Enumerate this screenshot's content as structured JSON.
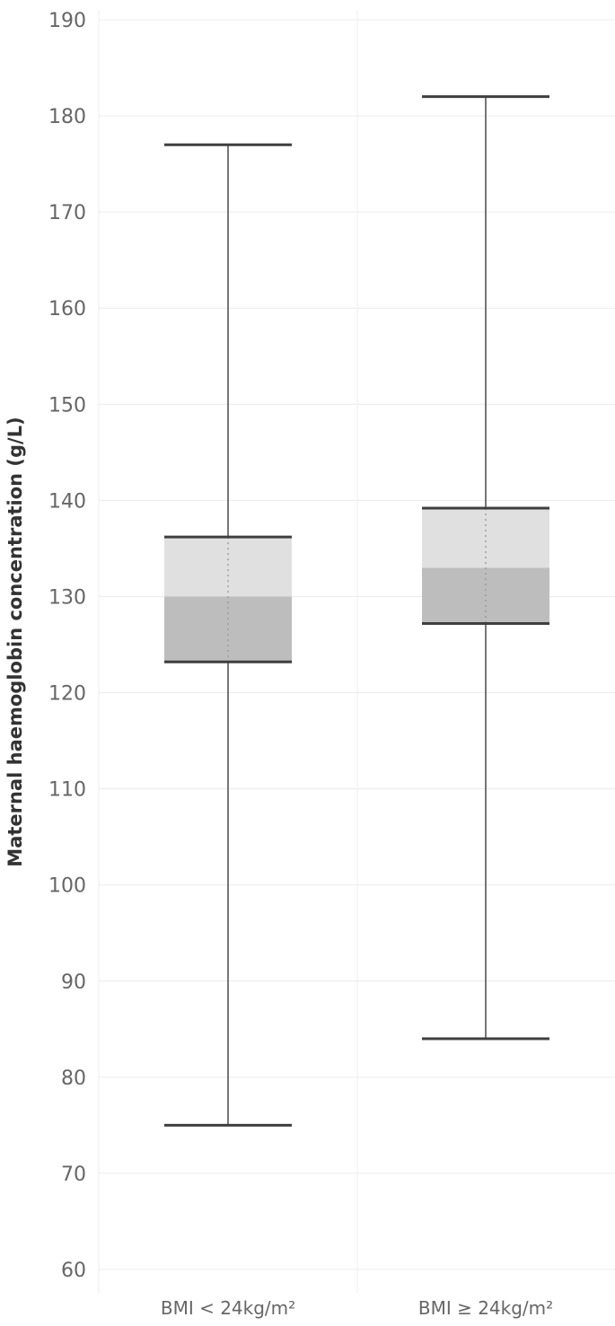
{
  "chart_data": {
    "type": "box",
    "title": "",
    "xlabel": "",
    "ylabel": "Maternal haemoglobin concentration (g/L)",
    "ylim": [
      58,
      192
    ],
    "yticks": [
      60,
      70,
      80,
      90,
      100,
      110,
      120,
      130,
      140,
      150,
      160,
      170,
      180,
      190
    ],
    "grid": true,
    "categories": [
      "BMI < 24kg/m²",
      "BMI ≥ 24kg/m²"
    ],
    "boxes": [
      {
        "category": "BMI < 24kg/m²",
        "min": 75,
        "q1": 123.2,
        "median": 130,
        "q3": 136.2,
        "max": 177
      },
      {
        "category": "BMI ≥ 24kg/m²",
        "min": 84,
        "q1": 127.2,
        "median": 133,
        "q3": 139.2,
        "max": 182
      }
    ],
    "colors": {
      "lower_box": "#bdbdbd",
      "upper_box": "#e0e0e0",
      "whisker": "#555555",
      "grid": "#ececec",
      "tick_text": "#666666"
    }
  }
}
